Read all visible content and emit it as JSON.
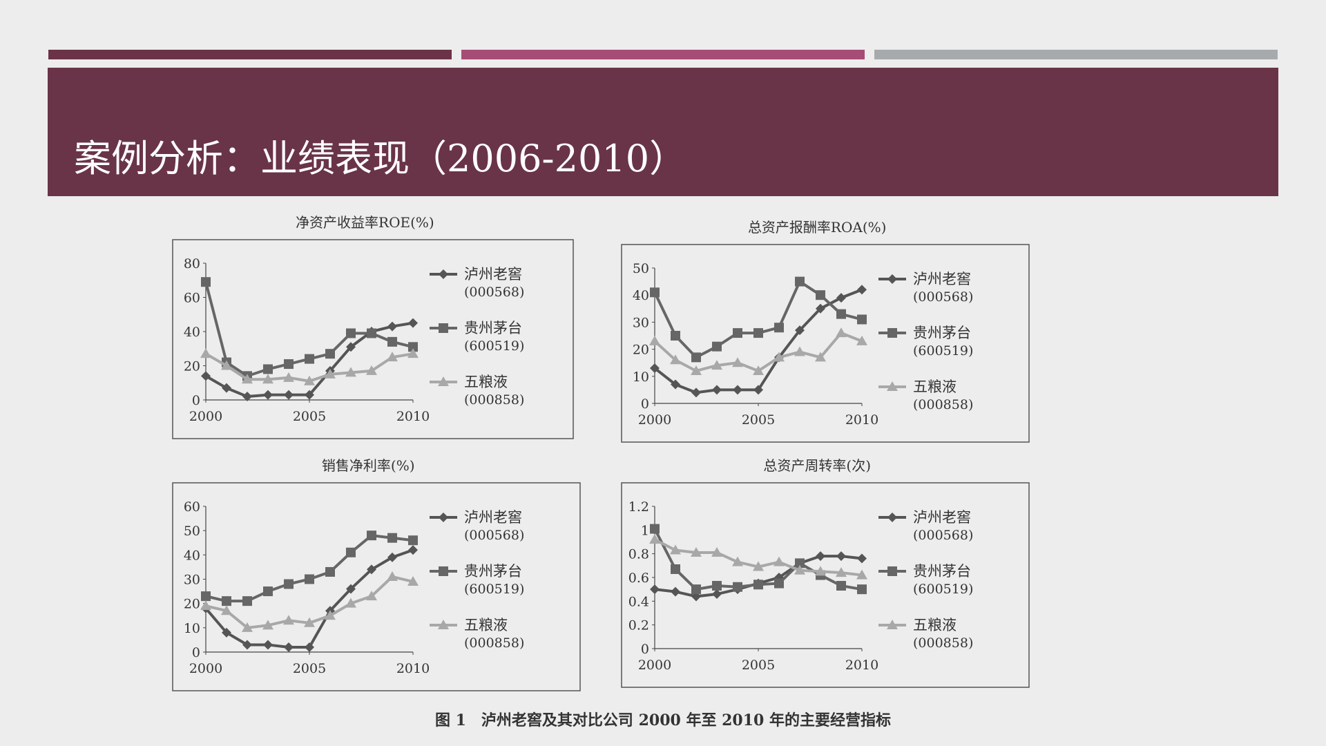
{
  "slide": {
    "title": "案例分析：业绩表现（2006-2010）",
    "caption": "图 1　泸州老窖及其对比公司 2000 年至 2010 年的主要经营指标"
  },
  "colors": {
    "banner": "#693448",
    "bar1": "#6b3348",
    "bar2": "#a64d76",
    "bar3": "#a7aaad",
    "series_luzhou": "#555555",
    "series_maotai": "#666666",
    "series_wuliangye": "#a8a8a8"
  },
  "chart_data": [
    {
      "type": "line",
      "title": "净资产收益率ROE(%)",
      "x": [
        2000,
        2001,
        2002,
        2003,
        2004,
        2005,
        2006,
        2007,
        2008,
        2009,
        2010
      ],
      "x_ticks": [
        "2000",
        "2005",
        "2010"
      ],
      "y_ticks": [
        "0",
        "20",
        "40",
        "60",
        "80"
      ],
      "ylim": [
        0,
        80
      ],
      "series": [
        {
          "name": "泸州老窖",
          "code": "(000568)",
          "marker": "diamond",
          "values": [
            14,
            7,
            2,
            3,
            3,
            3,
            17,
            31,
            40,
            43,
            45
          ]
        },
        {
          "name": "贵州茅台",
          "code": "(600519)",
          "marker": "square",
          "values": [
            69,
            22,
            14,
            18,
            21,
            24,
            27,
            39,
            39,
            34,
            31
          ]
        },
        {
          "name": "五粮液",
          "code": "(000858)",
          "marker": "triangle",
          "values": [
            27,
            20,
            12,
            12,
            13,
            11,
            15,
            16,
            17,
            25,
            27
          ]
        }
      ]
    },
    {
      "type": "line",
      "title": "总资产报酬率ROA(%)",
      "x": [
        2000,
        2001,
        2002,
        2003,
        2004,
        2005,
        2006,
        2007,
        2008,
        2009,
        2010
      ],
      "x_ticks": [
        "2000",
        "2005",
        "2010"
      ],
      "y_ticks": [
        "0",
        "10",
        "20",
        "30",
        "40",
        "50"
      ],
      "ylim": [
        0,
        50
      ],
      "series": [
        {
          "name": "泸州老窖",
          "code": "(000568)",
          "marker": "diamond",
          "values": [
            13,
            7,
            4,
            5,
            5,
            5,
            17,
            27,
            35,
            39,
            42
          ]
        },
        {
          "name": "贵州茅台",
          "code": "(600519)",
          "marker": "square",
          "values": [
            41,
            25,
            17,
            21,
            26,
            26,
            28,
            45,
            40,
            33,
            31
          ]
        },
        {
          "name": "五粮液",
          "code": "(000858)",
          "marker": "triangle",
          "values": [
            23,
            16,
            12,
            14,
            15,
            12,
            17,
            19,
            17,
            26,
            23
          ]
        }
      ]
    },
    {
      "type": "line",
      "title": "销售净利率(%)",
      "x": [
        2000,
        2001,
        2002,
        2003,
        2004,
        2005,
        2006,
        2007,
        2008,
        2009,
        2010
      ],
      "x_ticks": [
        "2000",
        "2005",
        "2010"
      ],
      "y_ticks": [
        "0",
        "10",
        "20",
        "30",
        "40",
        "50",
        "60"
      ],
      "ylim": [
        0,
        60
      ],
      "series": [
        {
          "name": "泸州老窖",
          "code": "(000568)",
          "marker": "diamond",
          "values": [
            18,
            8,
            3,
            3,
            2,
            2,
            17,
            26,
            34,
            39,
            42
          ]
        },
        {
          "name": "贵州茅台",
          "code": "(600519)",
          "marker": "square",
          "values": [
            23,
            21,
            21,
            25,
            28,
            30,
            33,
            41,
            48,
            47,
            46
          ]
        },
        {
          "name": "五粮液",
          "code": "(000858)",
          "marker": "triangle",
          "values": [
            19,
            17,
            10,
            11,
            13,
            12,
            15,
            20,
            23,
            31,
            29
          ]
        }
      ]
    },
    {
      "type": "line",
      "title": "总资产周转率(次)",
      "x": [
        2000,
        2001,
        2002,
        2003,
        2004,
        2005,
        2006,
        2007,
        2008,
        2009,
        2010
      ],
      "x_ticks": [
        "2000",
        "2005",
        "2010"
      ],
      "y_ticks": [
        "0",
        "0.2",
        "0.4",
        "0.6",
        "0.8",
        "1",
        "1.2"
      ],
      "ylim": [
        0,
        1.2
      ],
      "series": [
        {
          "name": "泸州老窖",
          "code": "(000568)",
          "marker": "diamond",
          "values": [
            0.5,
            0.48,
            0.44,
            0.46,
            0.5,
            0.55,
            0.6,
            0.72,
            0.78,
            0.78,
            0.76
          ]
        },
        {
          "name": "贵州茅台",
          "code": "(600519)",
          "marker": "square",
          "values": [
            1.01,
            0.67,
            0.5,
            0.53,
            0.52,
            0.54,
            0.55,
            0.72,
            0.62,
            0.53,
            0.5
          ]
        },
        {
          "name": "五粮液",
          "code": "(000858)",
          "marker": "triangle",
          "values": [
            0.92,
            0.83,
            0.81,
            0.81,
            0.73,
            0.69,
            0.73,
            0.66,
            0.65,
            0.64,
            0.62
          ]
        }
      ]
    }
  ]
}
